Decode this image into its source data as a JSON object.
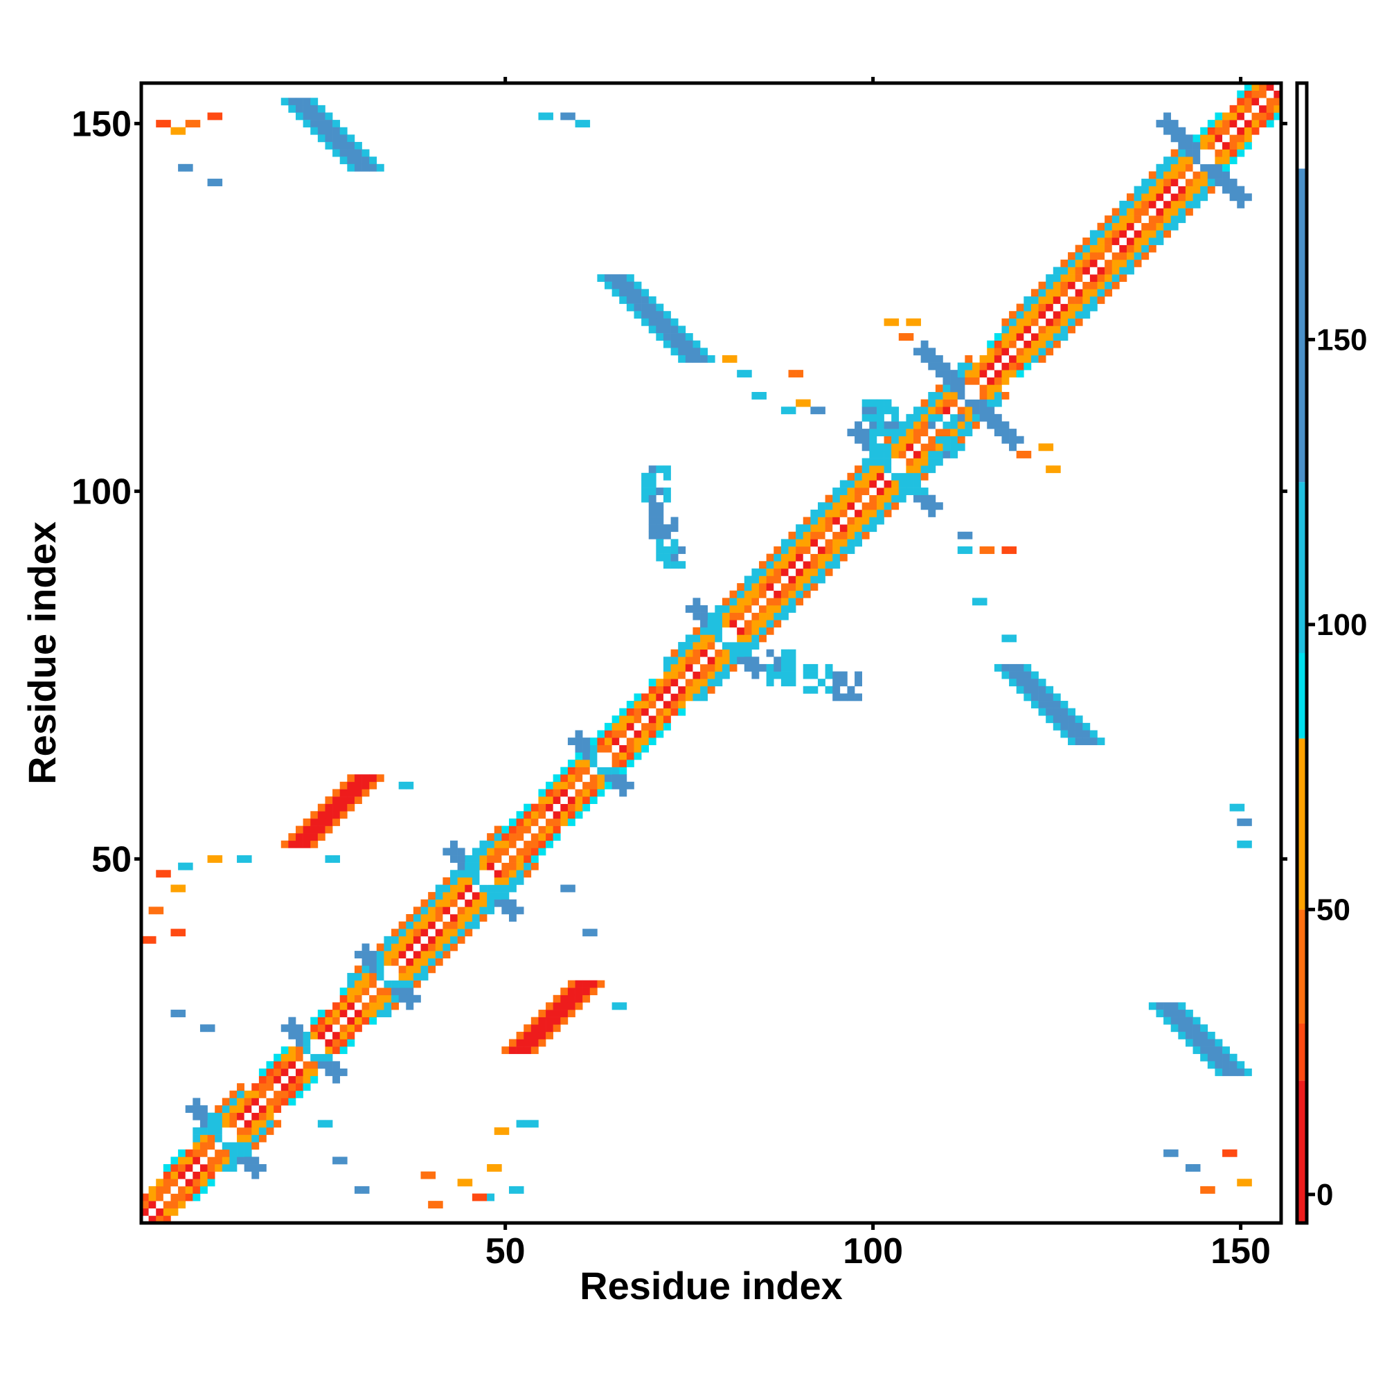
{
  "chart_data": {
    "type": "heatmap",
    "title": "",
    "xlabel": "Residue index",
    "ylabel": "Residue index",
    "xlim": [
      1,
      155
    ],
    "ylim": [
      1,
      155
    ],
    "x_ticks": [
      50,
      100,
      150
    ],
    "y_ticks": [
      50,
      100,
      150
    ],
    "colorbar_ticks": [
      0,
      50,
      100,
      150
    ],
    "colorbar_range": [
      -5,
      195
    ],
    "grid": false,
    "legend": "right colorbar",
    "colorscale": [
      {
        "from": -5,
        "to": 20,
        "color": "#ee1c1c"
      },
      {
        "from": 20,
        "to": 30,
        "color": "#ff4a12"
      },
      {
        "from": 30,
        "to": 50,
        "color": "#ff7010"
      },
      {
        "from": 50,
        "to": 80,
        "color": "#ffa200"
      },
      {
        "from": 80,
        "to": 95,
        "color": "#00e0ee"
      },
      {
        "from": 95,
        "to": 125,
        "color": "#20c0e0"
      },
      {
        "from": 125,
        "to": 180,
        "color": "#4a90c8"
      },
      {
        "from": 180,
        "to": 195,
        "color": "#ffffff"
      }
    ],
    "regions": [
      {
        "description": "main diagonal band",
        "x": [
          1,
          155
        ],
        "y": [
          1,
          155
        ],
        "value": 40
      },
      {
        "description": "helix-like contacts",
        "x": [
          1,
          155
        ],
        "y": [
          1,
          155
        ],
        "value": 110
      },
      {
        "description": "antiparallel strand",
        "x": [
          21,
          31
        ],
        "y": [
          138,
          154
        ],
        "value": 140
      },
      {
        "description": "parallel strand",
        "x": [
          21,
          32
        ],
        "y": [
          51,
          63
        ],
        "value": 15
      },
      {
        "description": "parallel strand",
        "x": [
          52,
          61
        ],
        "y": [
          23,
          33
        ],
        "value": 15
      },
      {
        "description": "antiparallel strand",
        "x": [
          64,
          78
        ],
        "y": [
          119,
          131
        ],
        "value": 140
      },
      {
        "description": "antiparallel strand",
        "x": [
          119,
          131
        ],
        "y": [
          65,
          78
        ],
        "value": 140
      },
      {
        "description": "antiparallel strand",
        "x": [
          138,
          154
        ],
        "y": [
          21,
          32
        ],
        "value": 140
      },
      {
        "description": "helix-helix cross",
        "x": [
          85,
          103
        ],
        "y": [
          71,
          79
        ],
        "value": 105
      },
      {
        "description": "helix-helix cross",
        "x": [
          68,
          76
        ],
        "y": [
          88,
          104
        ],
        "value": 110
      }
    ]
  }
}
